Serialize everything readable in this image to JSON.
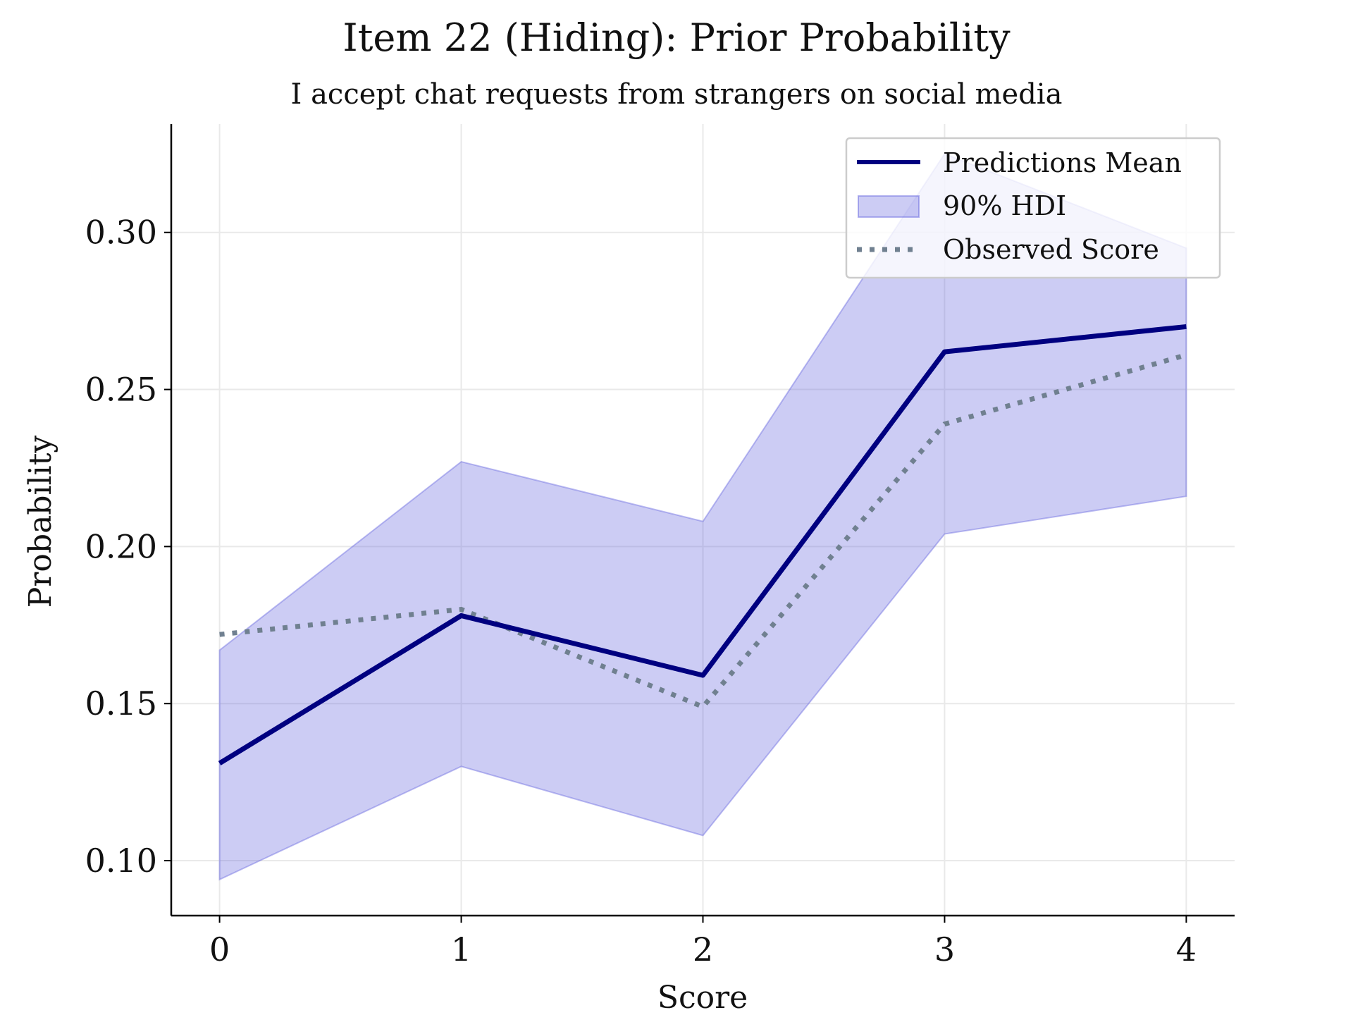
{
  "chart_data": {
    "type": "line",
    "title": "Item 22 (Hiding): Prior Probability",
    "subtitle": "I accept chat requests from strangers on social media",
    "xlabel": "Score",
    "ylabel": "Probability",
    "x": [
      0,
      1,
      2,
      3,
      4
    ],
    "xticks": [
      "0",
      "1",
      "2",
      "3",
      "4"
    ],
    "yticks": [
      "0.10",
      "0.15",
      "0.20",
      "0.25",
      "0.30"
    ],
    "ytick_values": [
      0.1,
      0.15,
      0.2,
      0.25,
      0.3
    ],
    "xlim": [
      -0.2,
      4.2
    ],
    "ylim": [
      0.0825,
      0.3345
    ],
    "grid": true,
    "legend_position": "top-right",
    "series": [
      {
        "name": "Predictions Mean",
        "kind": "line",
        "color": "#000080",
        "values": [
          0.131,
          0.178,
          0.159,
          0.262,
          0.27
        ]
      },
      {
        "name": "90% HDI",
        "kind": "band",
        "color": "#6a6ae0",
        "lower": [
          0.094,
          0.13,
          0.108,
          0.204,
          0.216
        ],
        "upper": [
          0.167,
          0.227,
          0.208,
          0.325,
          0.295
        ]
      },
      {
        "name": "Observed Score",
        "kind": "dotted-line",
        "color": "#708090",
        "values": [
          0.172,
          0.18,
          0.149,
          0.239,
          0.261
        ]
      }
    ]
  }
}
